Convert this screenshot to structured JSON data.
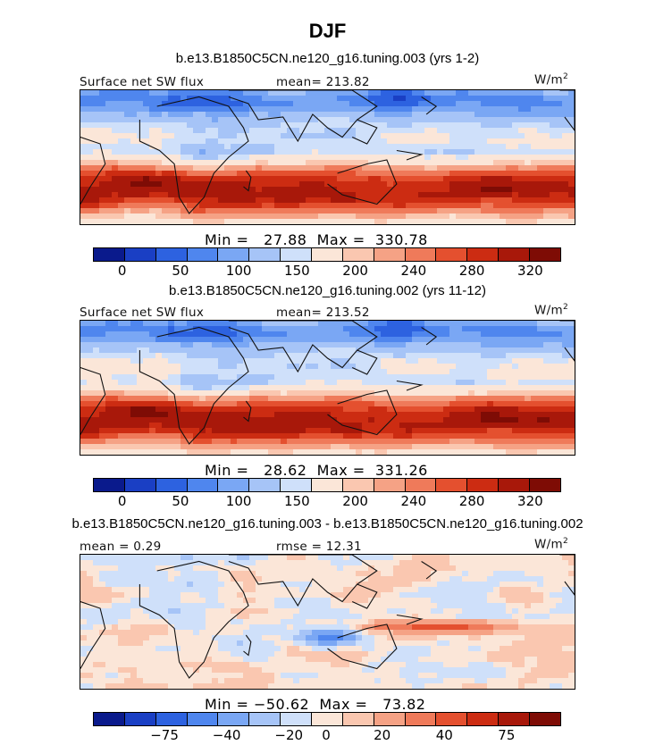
{
  "title": "DJF",
  "panels": [
    {
      "case_label": "b.e13.B1850C5CN.ne120_g16.tuning.003 (yrs 1-2)",
      "left_label": "Surface net SW flux",
      "center_label": "mean= 213.82",
      "units": "W/m",
      "units_exp": "2",
      "minmax": "Min =   27.88  Max =  330.78",
      "scheme": "abs",
      "ticks": [
        "0",
        "50",
        "100",
        "150",
        "200",
        "240",
        "280",
        "320"
      ]
    },
    {
      "case_label": "b.e13.B1850C5CN.ne120_g16.tuning.002 (yrs 11-12)",
      "left_label": "Surface net SW flux",
      "center_label": "mean= 213.52",
      "units": "W/m",
      "units_exp": "2",
      "minmax": "Min =   28.62  Max =  331.26",
      "scheme": "abs",
      "ticks": [
        "0",
        "50",
        "100",
        "150",
        "200",
        "240",
        "280",
        "320"
      ]
    },
    {
      "case_label": "b.e13.B1850C5CN.ne120_g16.tuning.003 - b.e13.B1850C5CN.ne120_g16.tuning.002",
      "left_label": "mean =   0.29",
      "center_label": "rmse =   12.31",
      "units": "W/m",
      "units_exp": "2",
      "minmax": "Min = −50.62  Max =   73.82",
      "scheme": "diff",
      "ticks": [
        "−75",
        "−40",
        "−20",
        "0",
        "20",
        "40",
        "75"
      ]
    }
  ],
  "colorbar_colors": [
    "#0a1a8c",
    "#1a3fc4",
    "#2d62e0",
    "#4f86ee",
    "#7aa7f4",
    "#a6c4f7",
    "#cfe0fa",
    "#fbe6d8",
    "#fac7b0",
    "#f5a285",
    "#ef7a5a",
    "#e4502f",
    "#cc2c12",
    "#a8180a",
    "#7e0c05"
  ],
  "colors": {
    "land_outline": "#111111",
    "background": "#ffffff"
  }
}
